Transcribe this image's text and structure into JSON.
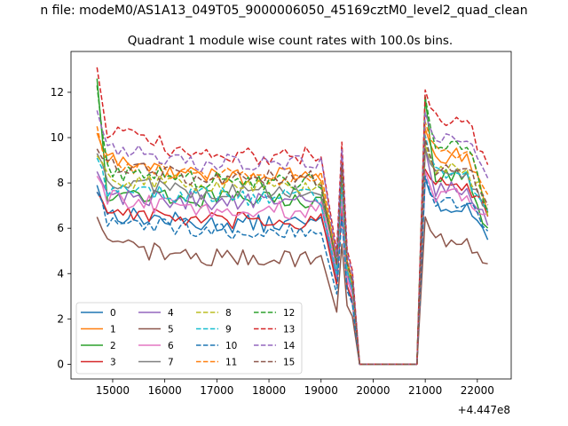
{
  "suptitle": "n file: modeM0/AS1A13_049T05_9000006050_45169cztM0_level2_quad_clean",
  "chart_data": {
    "type": "line",
    "title": "Quadrant 1 module wise count rates with 100.0s bins.",
    "xlabel": "",
    "ylabel": "",
    "x_offset_label": "+4.447e8",
    "xlim": [
      14200,
      22650
    ],
    "ylim": [
      -0.65,
      13.8
    ],
    "xticks": [
      15000,
      16000,
      17000,
      18000,
      19000,
      20000,
      21000,
      22000
    ],
    "yticks": [
      0,
      2,
      4,
      6,
      8,
      10,
      12
    ],
    "x_start": 14700,
    "x_step": 100,
    "gap_after_index": 45,
    "gap_x": [
      19740,
      20840
    ],
    "legend_loc": "lower-left",
    "legend_ncol": 4,
    "series": [
      {
        "name": "0",
        "color": "#1f77b4",
        "dash": "solid",
        "base_a": 6.7,
        "base_b": 6.2,
        "start": 7.9,
        "dip": 4.0,
        "peak": 8.2,
        "base_c": 7.0,
        "end": 5.6
      },
      {
        "name": "1",
        "color": "#ff7f0e",
        "dash": "solid",
        "base_a": 9.1,
        "base_b": 8.3,
        "start": 10.2,
        "dip": 4.2,
        "peak": 10.4,
        "base_c": 9.2,
        "end": 7.0
      },
      {
        "name": "2",
        "color": "#2ca02c",
        "dash": "solid",
        "base_a": 7.6,
        "base_b": 7.3,
        "start": 12.6,
        "dip": 3.6,
        "peak": 11.8,
        "base_c": 8.4,
        "end": 5.8
      },
      {
        "name": "3",
        "color": "#d62728",
        "dash": "solid",
        "base_a": 6.9,
        "base_b": 6.3,
        "start": 7.6,
        "dip": 3.5,
        "peak": 8.6,
        "base_c": 7.9,
        "end": 6.5
      },
      {
        "name": "4",
        "color": "#9467bd",
        "dash": "solid",
        "base_a": 7.5,
        "base_b": 7.2,
        "start": 8.5,
        "dip": 3.8,
        "peak": 9.5,
        "base_c": 7.7,
        "end": 6.3
      },
      {
        "name": "5",
        "color": "#8c564b",
        "dash": "solid",
        "base_a": 5.3,
        "base_b": 4.7,
        "start": 6.5,
        "dip": 2.3,
        "peak": 6.5,
        "base_c": 5.5,
        "end": 4.1
      },
      {
        "name": "6",
        "color": "#e377c2",
        "dash": "solid",
        "base_a": 7.4,
        "base_b": 6.8,
        "start": 8.3,
        "dip": 4.2,
        "peak": 8.5,
        "base_c": 7.4,
        "end": 6.5
      },
      {
        "name": "7",
        "color": "#7f7f7f",
        "dash": "solid",
        "base_a": 8.2,
        "base_b": 7.6,
        "start": 9.3,
        "dip": 4.6,
        "peak": 9.5,
        "base_c": 8.4,
        "end": 6.9
      },
      {
        "name": "8",
        "color": "#bcbd22",
        "dash": "dashed",
        "base_a": 8.3,
        "base_b": 7.9,
        "start": 9.2,
        "dip": 4.8,
        "peak": 9.7,
        "base_c": 8.6,
        "end": 6.8
      },
      {
        "name": "9",
        "color": "#17becf",
        "dash": "dashed",
        "base_a": 7.8,
        "base_b": 7.4,
        "start": 9.1,
        "dip": 4.0,
        "peak": 10.1,
        "base_c": 8.5,
        "end": 6.5
      },
      {
        "name": "10",
        "color": "#1f77b4",
        "dash": "dashed",
        "base_a": 6.3,
        "base_b": 5.9,
        "start": 7.6,
        "dip": 3.1,
        "peak": 8.3,
        "base_c": 7.1,
        "end": 5.8
      },
      {
        "name": "11",
        "color": "#ff7f0e",
        "dash": "dashed",
        "base_a": 8.9,
        "base_b": 8.3,
        "start": 10.5,
        "dip": 4.6,
        "peak": 10.7,
        "base_c": 9.4,
        "end": 7.6
      },
      {
        "name": "12",
        "color": "#2ca02c",
        "dash": "dashed",
        "base_a": 8.6,
        "base_b": 8.1,
        "start": 12.3,
        "dip": 4.4,
        "peak": 11.8,
        "base_c": 9.6,
        "end": 7.0
      },
      {
        "name": "13",
        "color": "#d62728",
        "dash": "dashed",
        "base_a": 10.4,
        "base_b": 9.2,
        "start": 13.1,
        "dip": 5.0,
        "peak": 12.1,
        "base_c": 10.8,
        "end": 8.6
      },
      {
        "name": "14",
        "color": "#9467bd",
        "dash": "dashed",
        "base_a": 9.8,
        "base_b": 8.9,
        "start": 11.2,
        "dip": 4.7,
        "peak": 11.1,
        "base_c": 9.9,
        "end": 8.2
      },
      {
        "name": "15",
        "color": "#8c564b",
        "dash": "dashed",
        "base_a": 8.9,
        "base_b": 8.2,
        "start": 9.5,
        "dip": 4.4,
        "peak": 9.9,
        "base_c": 8.7,
        "end": 7.2
      }
    ]
  }
}
